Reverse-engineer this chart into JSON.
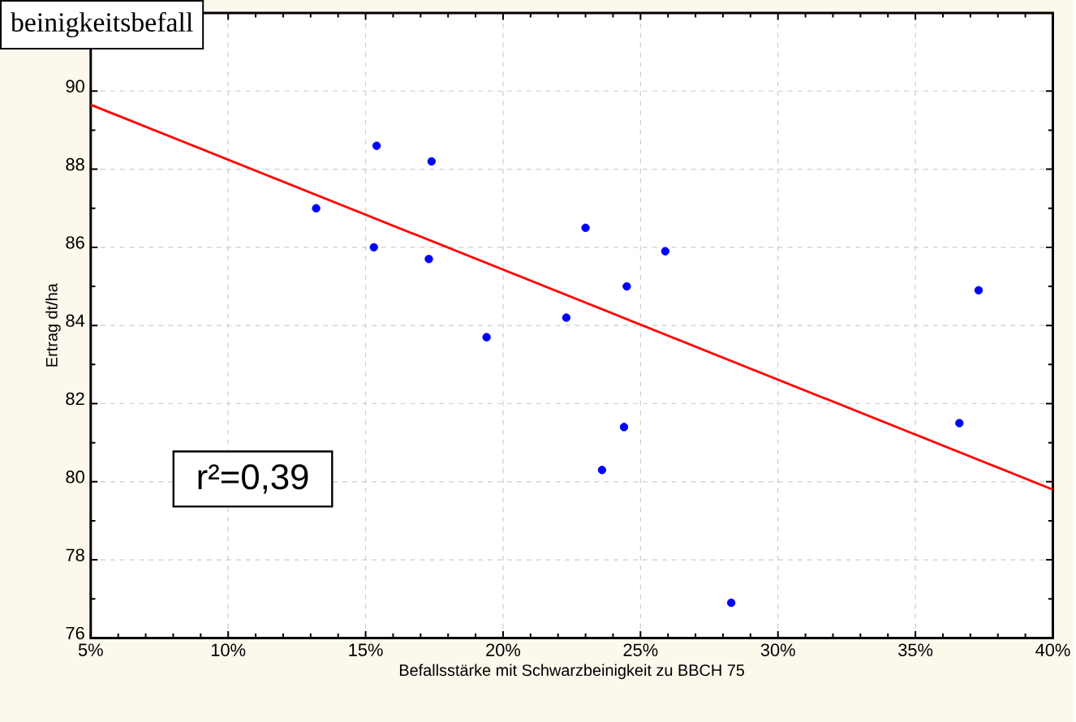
{
  "chart_data": {
    "type": "scatter",
    "title": "beinigkeitsbefall",
    "xlabel": "Befallsstärke mit Schwarzbeinigkeit zu BBCH 75",
    "ylabel": "Ertrag dt/ha",
    "annotations": [
      "r²=0,39"
    ],
    "xlim": [
      5,
      40
    ],
    "ylim": [
      76,
      92
    ],
    "xticks": [
      {
        "value": 5,
        "label": "5%"
      },
      {
        "value": 10,
        "label": "10%"
      },
      {
        "value": 15,
        "label": "15%"
      },
      {
        "value": 20,
        "label": "20%"
      },
      {
        "value": 25,
        "label": "25%"
      },
      {
        "value": 30,
        "label": "30%"
      },
      {
        "value": 35,
        "label": "35%"
      },
      {
        "value": 40,
        "label": "40%"
      }
    ],
    "yticks": [
      76,
      78,
      80,
      82,
      84,
      86,
      88,
      90
    ],
    "grid": true,
    "series": [
      {
        "color": "#0000ff",
        "marker": "circle",
        "x": [
          13.2,
          15.4,
          15.3,
          17.4,
          17.3,
          19.4,
          22.3,
          23.0,
          24.5,
          25.9,
          24.4,
          23.6,
          28.3,
          36.6,
          37.3
        ],
        "values": [
          87.0,
          88.6,
          86.0,
          88.2,
          85.7,
          83.7,
          84.2,
          86.5,
          85.0,
          85.9,
          81.4,
          80.3,
          76.9,
          81.5,
          84.9
        ]
      },
      {
        "type": "line",
        "color": "#ff0000",
        "marker": "none",
        "x": [
          5,
          40
        ],
        "values": [
          89.65,
          79.8
        ]
      }
    ]
  }
}
